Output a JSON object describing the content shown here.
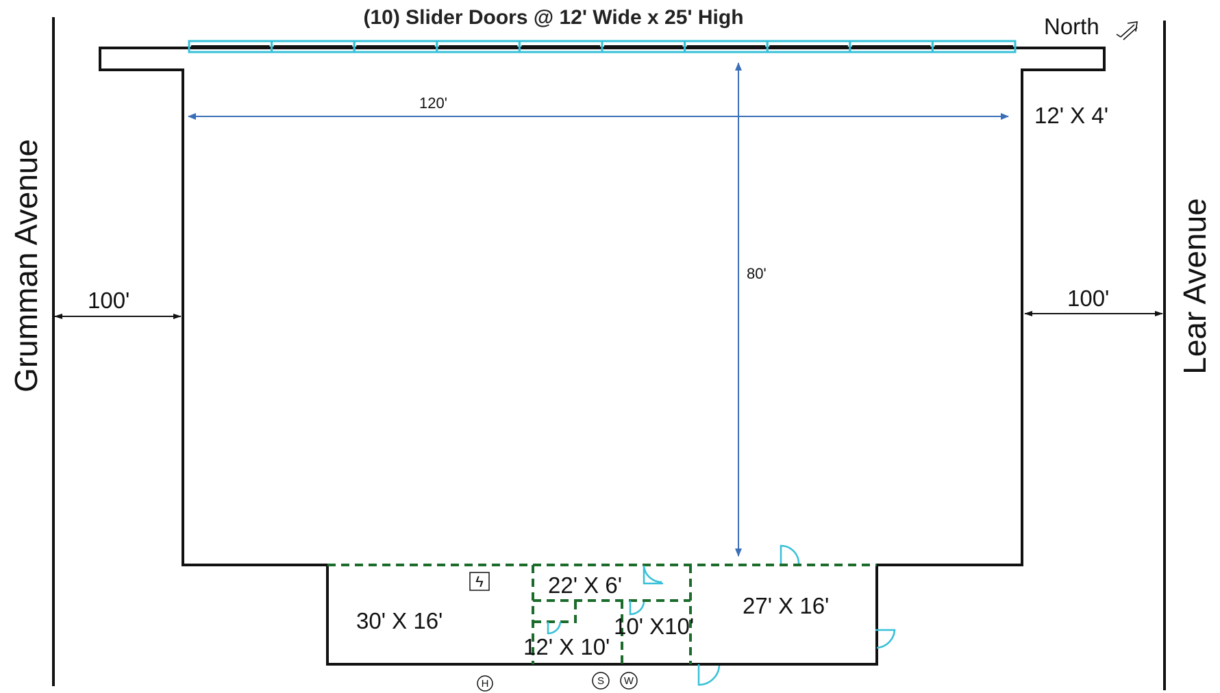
{
  "title": "(10) Slider Doors @ 12' Wide x 25' High",
  "north_label": "North",
  "streets": {
    "left": "Grumman Avenue",
    "right": "Lear Avenue"
  },
  "dimensions": {
    "width": "120'",
    "depth": "80'",
    "left_setback": "100'",
    "right_setback": "100'",
    "overhang": "12' X 4'"
  },
  "rooms": {
    "office_a": "30' X 16'",
    "office_b": "22' X 6'",
    "office_c": "27' X 16'",
    "office_d": "12' X 10'",
    "office_e": "10' X10'"
  },
  "utilities": {
    "hydrant": "H",
    "sewer": "S",
    "water": "W",
    "electric_panel": "ϟ"
  },
  "slider_door_count": 10,
  "colors": {
    "walls": "#111111",
    "rooms": "#1b6b2a",
    "doors": "#36c0d8",
    "dimension_lines": "#3a6fb8"
  }
}
